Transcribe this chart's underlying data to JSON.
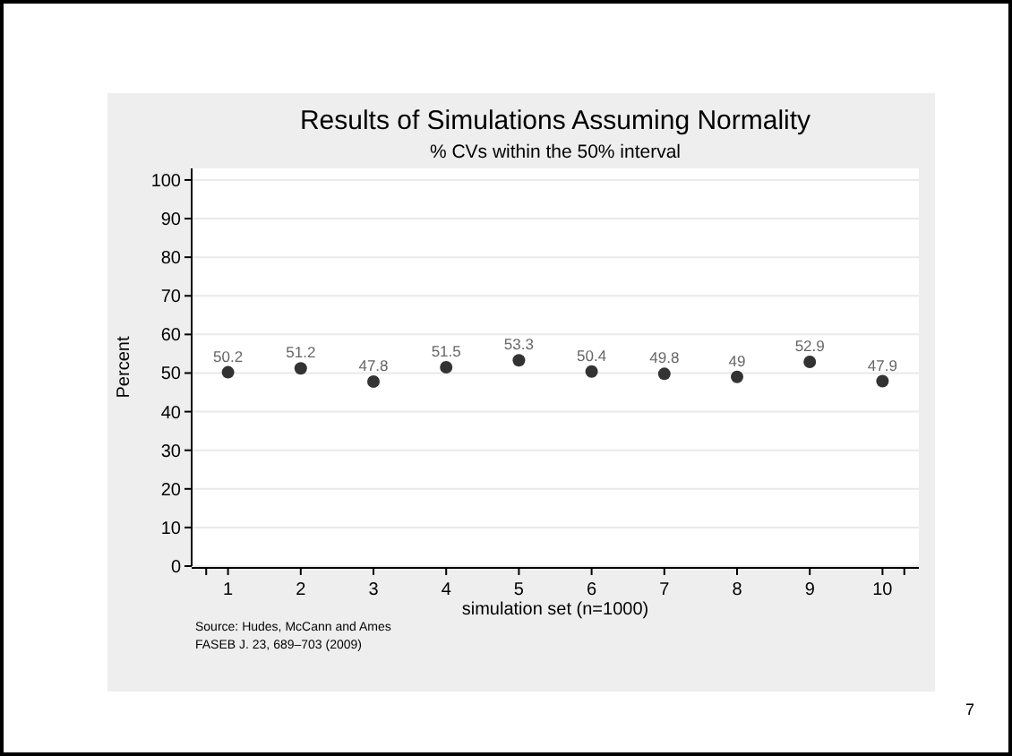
{
  "chart_data": {
    "type": "scatter",
    "title": "Results of Simulations Assuming Normality",
    "subtitle": "% CVs within the 50% interval",
    "xlabel": "simulation set (n=1000)",
    "ylabel": "Percent",
    "x": [
      1,
      2,
      3,
      4,
      5,
      6,
      7,
      8,
      9,
      10
    ],
    "values": [
      50.2,
      51.2,
      47.8,
      51.5,
      53.3,
      50.4,
      49.8,
      49,
      52.9,
      47.9
    ],
    "color": "#333333",
    "marker": "circle",
    "data_labels": true,
    "grid": "y",
    "xlim": [
      0.5,
      10.5
    ],
    "xticks": [
      {
        "value": 0.7,
        "label": null
      },
      1,
      2,
      3,
      4,
      5,
      6,
      7,
      8,
      9,
      10,
      {
        "value": 10.3,
        "label": null
      }
    ],
    "ylim": [
      0,
      103
    ],
    "yticks": [
      0,
      10,
      20,
      30,
      40,
      50,
      60,
      70,
      80,
      90,
      100
    ],
    "annotations": [
      "Source: Hudes, McCann and Ames",
      "FASEB J. 23, 689–703 (2009)",
      "7"
    ]
  }
}
